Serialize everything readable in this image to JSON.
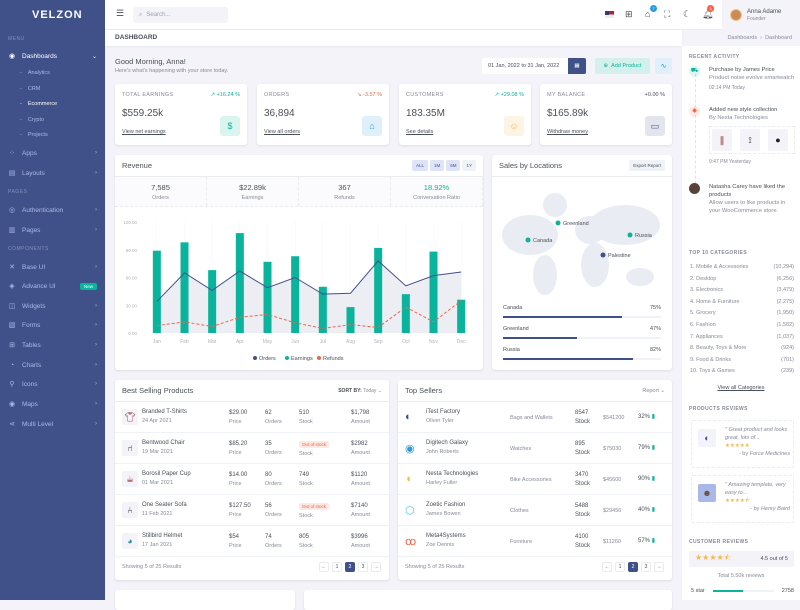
{
  "brand": "VELZON",
  "sidebar": {
    "menu_title": "MENU",
    "pages_title": "PAGES",
    "components_title": "COMPONENTS",
    "dashboards": "Dashboards",
    "sub": [
      "Analytics",
      "CRM",
      "Ecommerce",
      "Crypto",
      "Projects"
    ],
    "active_sub": "Ecommerce",
    "items": [
      {
        "label": "Apps",
        "icon": "apps-icon"
      },
      {
        "label": "Layouts",
        "icon": "layouts-icon"
      },
      {
        "label": "Authentication",
        "icon": "account-circle-icon"
      },
      {
        "label": "Pages",
        "icon": "pages-icon"
      },
      {
        "label": "Base UI",
        "icon": "pencil-ruler-icon"
      },
      {
        "label": "Advance UI",
        "icon": "stack-icon",
        "badge": "New"
      },
      {
        "label": "Widgets",
        "icon": "honour-icon"
      },
      {
        "label": "Forms",
        "icon": "file-list-icon"
      },
      {
        "label": "Tables",
        "icon": "table-icon"
      },
      {
        "label": "Charts",
        "icon": "pie-chart-icon"
      },
      {
        "label": "Icons",
        "icon": "compasses-icon"
      },
      {
        "label": "Maps",
        "icon": "map-pin-icon"
      },
      {
        "label": "Multi Level",
        "icon": "share-icon"
      }
    ]
  },
  "topbar": {
    "search_placeholder": "Search...",
    "cart_count": "7",
    "notif_count": "3",
    "user_name": "Anna Adame",
    "user_role": "Founder"
  },
  "page": {
    "title": "DASHBOARD",
    "breadcrumb": [
      "Dashboards",
      "Dashboard"
    ]
  },
  "greeting": {
    "title": "Good Morning, Anna!",
    "subtitle": "Here's what's happening with your store today.",
    "date_range": "01 Jan, 2022 to 31 Jan, 2022",
    "add_product": "Add Product"
  },
  "stats": [
    {
      "label": "TOTAL EARNINGS",
      "pct": "+16.24 %",
      "trend": "up",
      "value": "$559.25k",
      "link": "View net earnings",
      "icon": "dollar-circle-icon",
      "color": "#0ab39c",
      "bg": "#daf4f0"
    },
    {
      "label": "ORDERS",
      "pct": "-3.57 %",
      "trend": "down",
      "value": "36,894",
      "link": "View all orders",
      "icon": "shopping-bag-icon",
      "color": "#299cdb",
      "bg": "#dff0fa"
    },
    {
      "label": "CUSTOMERS",
      "pct": "+29.08 %",
      "trend": "up",
      "value": "183.35M",
      "link": "See details",
      "icon": "user-circle-icon",
      "color": "#f7b84b",
      "bg": "#fef4e4"
    },
    {
      "label": "MY BALANCE",
      "pct": "+0.00 %",
      "trend": "flat",
      "value": "$165.89k",
      "link": "Withdraw money",
      "icon": "wallet-icon",
      "color": "#405189",
      "bg": "#e2e5ed"
    }
  ],
  "revenue": {
    "title": "Revenue",
    "filters": [
      "ALL",
      "1M",
      "6M",
      "1Y"
    ],
    "summary": [
      {
        "value": "7,585",
        "label": "Orders"
      },
      {
        "value": "$22.89k",
        "label": "Earnings"
      },
      {
        "value": "367",
        "label": "Refunds"
      },
      {
        "value": "18.92%",
        "label": "Conversation Ratio"
      }
    ]
  },
  "chart_data": {
    "type": "bar",
    "categories": [
      "Jan",
      "Feb",
      "Mar",
      "Apr",
      "May",
      "Jun",
      "Jul",
      "Aug",
      "Sep",
      "Oct",
      "Nov",
      "Dec"
    ],
    "ylim": [
      0,
      120
    ],
    "yticks": [
      "0.00",
      "30.00",
      "60.00",
      "90.00",
      "120.00"
    ],
    "legend": "bottom",
    "series": [
      {
        "name": "Orders",
        "kind": "area-line",
        "color": "#405189",
        "values": [
          34,
          65,
          46,
          67,
          49,
          60,
          42,
          43,
          78,
          51,
          62,
          66
        ]
      },
      {
        "name": "Earnings",
        "kind": "bar",
        "color": "#0ab39c",
        "values": [
          89,
          98,
          68,
          108,
          77,
          83,
          50,
          28,
          92,
          42,
          88,
          36
        ]
      },
      {
        "name": "Refunds",
        "kind": "dashed-line",
        "color": "#f06548",
        "values": [
          8,
          12,
          7,
          17,
          20,
          11,
          5,
          9,
          6,
          28,
          12,
          35
        ]
      }
    ]
  },
  "locations": {
    "title": "Sales by Locations",
    "export": "Export Report",
    "markers": [
      {
        "name": "Greenland",
        "color": "#0ab39c"
      },
      {
        "name": "Canada",
        "color": "#0ab39c"
      },
      {
        "name": "Russia",
        "color": "#0ab39c"
      },
      {
        "name": "Palestine",
        "color": "#405189"
      }
    ],
    "bars": [
      {
        "name": "Canada",
        "pct": "75%",
        "value": 75
      },
      {
        "name": "Greenland",
        "pct": "47%",
        "value": 47
      },
      {
        "name": "Russia",
        "pct": "82%",
        "value": 82
      }
    ]
  },
  "best": {
    "title": "Best Selling Products",
    "sort_label": "SORT BY:",
    "sort_value": "Today",
    "cols": [
      "Price",
      "Orders",
      "Stock",
      "Amount"
    ],
    "rows": [
      {
        "name": "Branded T-Shirts",
        "date": "24 Apr 2021",
        "price": "$29.00",
        "orders": "62",
        "stock": "510",
        "amount": "$1,798",
        "icon": "tshirt-icon"
      },
      {
        "name": "Bentwood Chair",
        "date": "19 Mar 2021",
        "price": "$85.20",
        "orders": "35",
        "stock": "Out of stock",
        "amount": "$2982",
        "icon": "chair-icon"
      },
      {
        "name": "Borosil Paper Cup",
        "date": "01 Mar 2021",
        "price": "$14.00",
        "orders": "80",
        "stock": "749",
        "amount": "$1120",
        "icon": "cup-icon"
      },
      {
        "name": "One Seater Sofa",
        "date": "11 Feb 2021",
        "price": "$127.50",
        "orders": "56",
        "stock": "Out of stock",
        "amount": "$7140",
        "icon": "sofa-icon"
      },
      {
        "name": "Stillbird Helmet",
        "date": "17 Jan 2021",
        "price": "$54",
        "orders": "74",
        "stock": "805",
        "amount": "$3996",
        "icon": "helmet-icon"
      }
    ],
    "showing": "Showing 5 of 25 Results",
    "pages": [
      "←",
      "1",
      "2",
      "3",
      "→"
    ],
    "current": "2"
  },
  "sellers": {
    "title": "Top Sellers",
    "report": "Report",
    "stock_label": "Stock",
    "rows": [
      {
        "name": "iTest Factory",
        "person": "Oliver Tyler",
        "cat": "Bags and Wallets",
        "stock": "8547",
        "amount": "$541200",
        "pct": "32%",
        "color": "#405189"
      },
      {
        "name": "Digitech Galaxy",
        "person": "John Roberts",
        "cat": "Watches",
        "stock": "895",
        "amount": "$75030",
        "pct": "79%",
        "color": "#299cdb"
      },
      {
        "name": "Nesta Technologies",
        "person": "Harley Fuller",
        "cat": "Bike Accessories",
        "stock": "3470",
        "amount": "$45600",
        "pct": "90%",
        "color": "#f7b84b"
      },
      {
        "name": "Zoetic Fashion",
        "person": "James Bowen",
        "cat": "Clothes",
        "stock": "5488",
        "amount": "$29456",
        "pct": "40%",
        "color": "#4fc3f7"
      },
      {
        "name": "Meta4Systems",
        "person": "Zoe Dennis",
        "cat": "Furniture",
        "stock": "4100",
        "amount": "$11260",
        "pct": "57%",
        "color": "#f06548"
      }
    ],
    "showing": "Showing 5 of 25 Results",
    "pages": [
      "←",
      "1",
      "2",
      "3",
      "→"
    ],
    "current": "2"
  },
  "activity": {
    "title": "RECENT ACTIVITY",
    "items": [
      {
        "title": "Purchase by James Price",
        "desc": "Product noise evolve smartwatch",
        "time": "02:14 PM Today",
        "icon": "cart-icon",
        "color": "#0ab39c"
      },
      {
        "title": "Added new style collection",
        "desc": "By Nesta Technologies",
        "time": "9:47 PM Yesterday",
        "icon": "stack-icon",
        "color": "#f06548"
      },
      {
        "title": "Natasha Carey have liked the products",
        "desc": "Allow users to like products in your WooCommerce store."
      }
    ]
  },
  "categories": {
    "title": "TOP 10 CATEGORIES",
    "items": [
      {
        "name": "1. Mobile & Accessories",
        "count": "(10,294)"
      },
      {
        "name": "2. Desktop",
        "count": "(6,256)"
      },
      {
        "name": "3. Electronics",
        "count": "(3,479)"
      },
      {
        "name": "4. Home & Furniture",
        "count": "(2,275)"
      },
      {
        "name": "5. Grocery",
        "count": "(1,950)"
      },
      {
        "name": "6. Fashion",
        "count": "(1,582)"
      },
      {
        "name": "7. Appliances",
        "count": "(1,037)"
      },
      {
        "name": "8. Beauty, Toys & More",
        "count": "(924)"
      },
      {
        "name": "9. Food & Drinks",
        "count": "(701)"
      },
      {
        "name": "10. Toys & Games",
        "count": "(239)"
      }
    ],
    "link": "View all Categories"
  },
  "reviews": {
    "title": "PRODUCTS REVIEWS",
    "items": [
      {
        "quote": "\" Great product and looks great, lots of...",
        "by": "- by",
        "author": "Force Medicines",
        "rating": 5
      },
      {
        "quote": "\" Amazing template, very easy to...",
        "by": "- by",
        "author": "Henry Baird",
        "rating": 4.5
      }
    ]
  },
  "customer_reviews": {
    "title": "CUSTOMER REVIEWS",
    "rating_text": "4.5 out of 5",
    "rating": 4.5,
    "total": "Total 5.50k reviews",
    "bars": [
      {
        "label": "5 star",
        "count": "2758",
        "value": 50
      }
    ]
  }
}
